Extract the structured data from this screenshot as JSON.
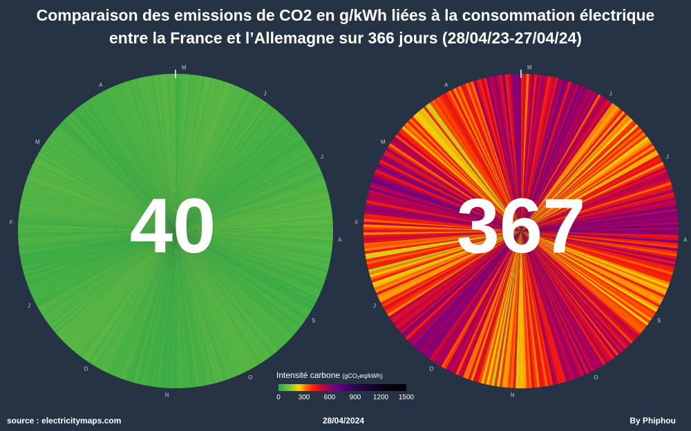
{
  "title": {
    "line1": "Comparaison des emissions de CO2 en g/kWh liées à la consommation électrique",
    "line2": "entre la France et l’Allemagne sur 366 jours (28/04/23-27/04/24)"
  },
  "chart_data": [
    {
      "type": "radial",
      "name": "France",
      "average_label": "40",
      "average": 40,
      "days": 366,
      "start_date": "28/04/23",
      "end_date": "27/04/24",
      "month_labels": [
        "M",
        "J",
        "J",
        "A",
        "S",
        "O",
        "N",
        "D",
        "J",
        "F",
        "M",
        "A"
      ],
      "value_range": [
        20,
        70
      ]
    },
    {
      "type": "radial",
      "name": "Allemagne",
      "average_label": "367",
      "average": 367,
      "days": 366,
      "start_date": "28/04/23",
      "end_date": "27/04/24",
      "month_labels": [
        "M",
        "J",
        "J",
        "A",
        "S",
        "O",
        "N",
        "D",
        "J",
        "F",
        "M",
        "A"
      ],
      "value_range": [
        150,
        700
      ]
    }
  ],
  "legend": {
    "title": "Intensité carbone",
    "unit": "(gCO₂eq/kWh)",
    "ticks": [
      "0",
      "300",
      "600",
      "900",
      "1200",
      "1500"
    ],
    "tick_values": [
      0,
      300,
      600,
      900,
      1200,
      1500
    ]
  },
  "footer": {
    "source": "source : electricitymaps.com",
    "date": "28/04/2024",
    "author": "By Phiphou"
  }
}
